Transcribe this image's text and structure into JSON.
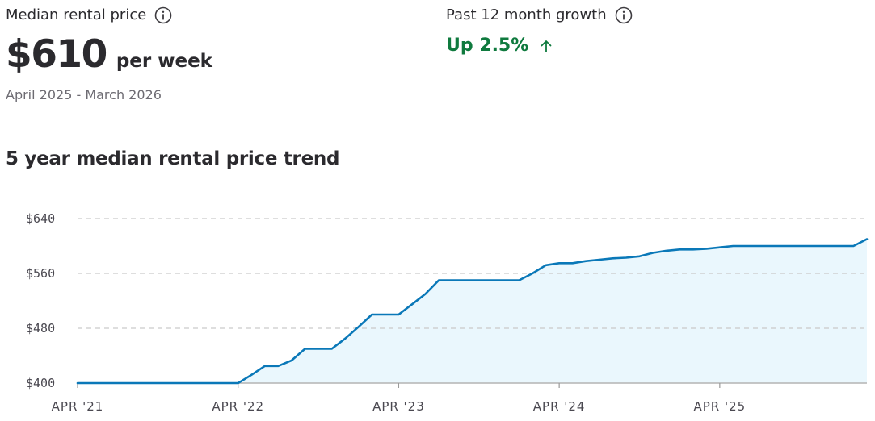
{
  "median": {
    "label": "Median rental price",
    "value": "$610",
    "unit": "per week",
    "period": "April 2025 - March 2026"
  },
  "growth": {
    "label": "Past 12 month growth",
    "value": "Up 2.5%"
  },
  "icons": {
    "info": "info-icon",
    "growth_arrow": "arrow-up-icon"
  },
  "colors": {
    "line": "#0a78b8",
    "fill": "#eaf7fd",
    "growth": "#0f7a3e",
    "grid": "#c9c9c9"
  },
  "chart_data": {
    "type": "area",
    "title": "5 year median rental price trend",
    "xlabel": "",
    "ylabel": "",
    "y_tick_labels": [
      "$640",
      "$560",
      "$480",
      "$400"
    ],
    "y_ticks": [
      640,
      560,
      480,
      400
    ],
    "ylim": [
      400,
      640
    ],
    "x_tick_labels": [
      "APR '21",
      "APR '22",
      "APR '23",
      "APR '24",
      "APR '25"
    ],
    "xlim": [
      "2021-04",
      "2026-03"
    ],
    "grid": true,
    "x": [
      "2021-04",
      "2021-05",
      "2021-06",
      "2021-07",
      "2021-08",
      "2021-09",
      "2021-10",
      "2021-11",
      "2021-12",
      "2022-01",
      "2022-02",
      "2022-03",
      "2022-04",
      "2022-05",
      "2022-06",
      "2022-07",
      "2022-08",
      "2022-09",
      "2022-10",
      "2022-11",
      "2022-12",
      "2023-01",
      "2023-02",
      "2023-03",
      "2023-04",
      "2023-05",
      "2023-06",
      "2023-07",
      "2023-08",
      "2023-09",
      "2023-10",
      "2023-11",
      "2023-12",
      "2024-01",
      "2024-02",
      "2024-03",
      "2024-04",
      "2024-05",
      "2024-06",
      "2024-07",
      "2024-08",
      "2024-09",
      "2024-10",
      "2024-11",
      "2024-12",
      "2025-01",
      "2025-02",
      "2025-03",
      "2025-04",
      "2025-05",
      "2025-06",
      "2025-07",
      "2025-08",
      "2025-09",
      "2025-10",
      "2025-11",
      "2025-12",
      "2026-01",
      "2026-02",
      "2026-03"
    ],
    "series": [
      {
        "values": [
          400,
          400,
          400,
          400,
          400,
          400,
          400,
          400,
          400,
          400,
          400,
          400,
          400,
          412,
          425,
          425,
          433,
          450,
          450,
          450,
          465,
          482,
          500,
          500,
          500,
          515,
          530,
          550,
          550,
          550,
          550,
          550,
          550,
          550,
          560,
          572,
          575,
          575,
          578,
          580,
          582,
          583,
          585,
          590,
          593,
          595,
          595,
          596,
          598,
          600,
          600,
          600,
          600,
          600,
          600,
          600,
          600,
          600,
          600,
          610
        ]
      }
    ]
  }
}
